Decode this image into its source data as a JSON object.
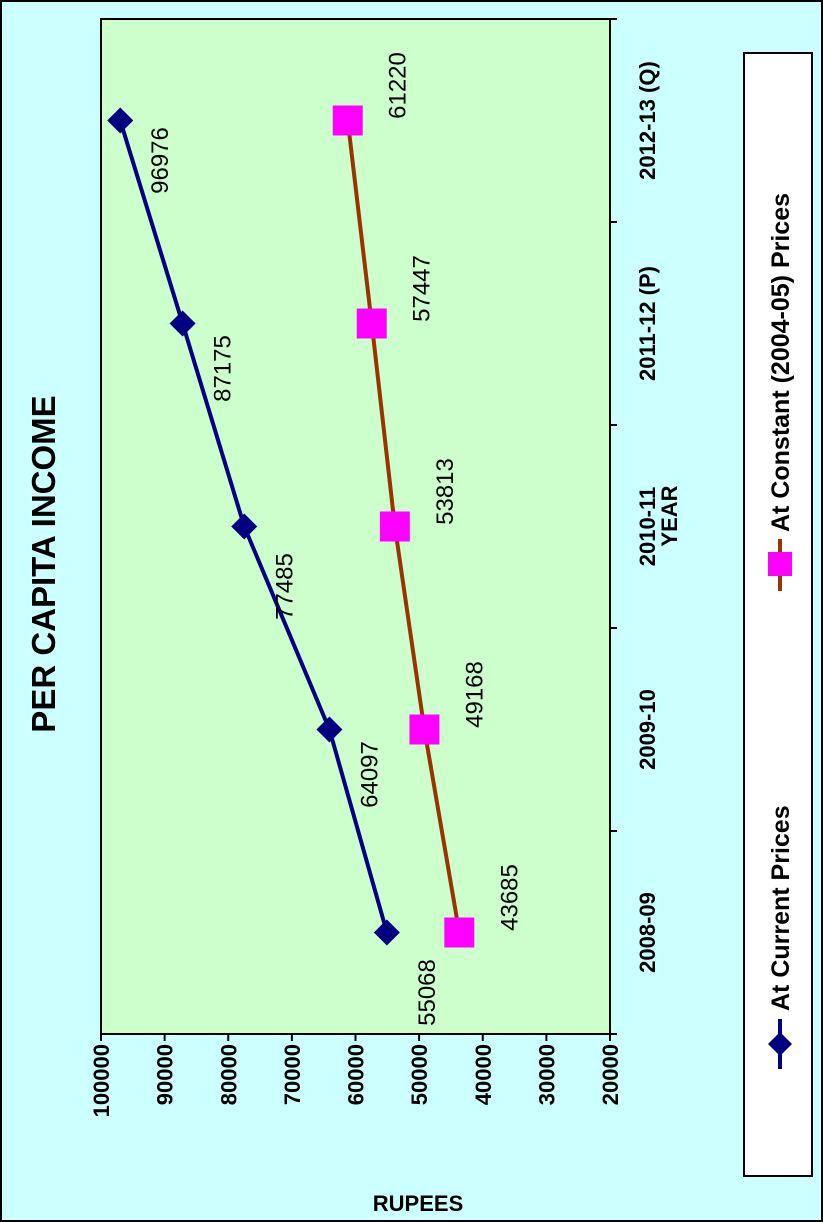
{
  "chart_data": {
    "type": "line",
    "title": "PER CAPITA INCOME",
    "xlabel": "YEAR",
    "ylabel": "RUPEES",
    "categories": [
      "2008-09",
      "2009-10",
      "2010-11",
      "2011-12 (P)",
      "2012-13 (Q)"
    ],
    "ylim": [
      20000,
      100000
    ],
    "ytick_step": 10000,
    "yticks": [
      "20000",
      "30000",
      "40000",
      "50000",
      "60000",
      "70000",
      "80000",
      "90000",
      "100000"
    ],
    "grid": false,
    "legend_position": "bottom",
    "plot_background": "#ccffcc",
    "chart_background": "#ccffff",
    "series": [
      {
        "name": "At Current Prices",
        "values": [
          55068,
          64097,
          77485,
          87175,
          96976
        ],
        "labels": [
          "55068",
          "64097",
          "77485",
          "87175",
          "96976"
        ],
        "color": "#000080",
        "marker": "diamond",
        "marker_color": "#000080"
      },
      {
        "name": "At Constant (2004-05) Prices",
        "values": [
          43685,
          49168,
          53813,
          57447,
          61220
        ],
        "labels": [
          "43685",
          "49168",
          "53813",
          "57447",
          "61220"
        ],
        "color": "#993300",
        "marker": "square",
        "marker_color": "#ff00ff"
      }
    ]
  }
}
